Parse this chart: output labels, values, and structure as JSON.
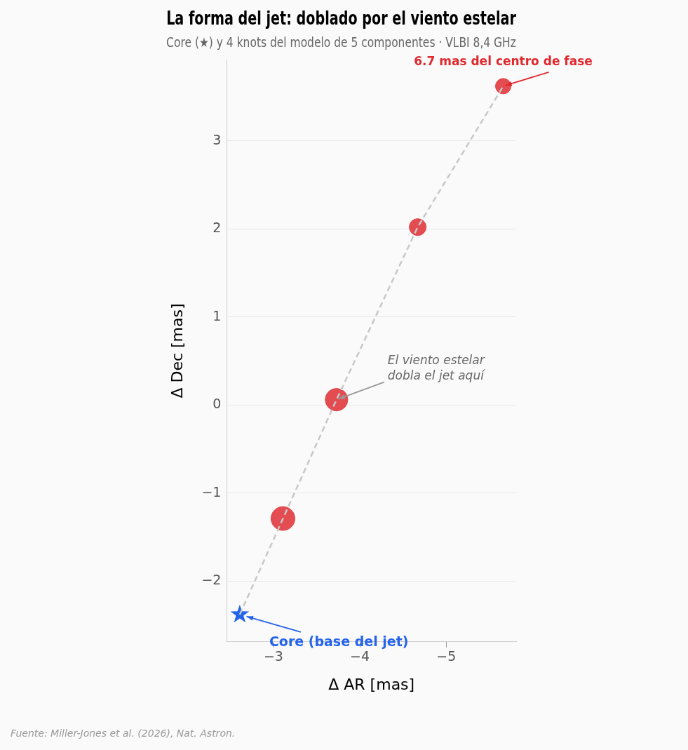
{
  "chart_data": {
    "type": "scatter",
    "title": "La forma del jet: doblado por el viento estelar",
    "subtitle": "Core (★) y 4 knots del modelo de 5 componentes · VLBI 8,4 GHz",
    "xlabel": "Δ AR [mas]",
    "ylabel": "Δ Dec [mas]",
    "xlim": [
      -2.46,
      -5.81
    ],
    "xticks": [
      {
        "value": -3,
        "label": "−3"
      },
      {
        "value": -4,
        "label": "−4"
      },
      {
        "value": -5,
        "label": "−5"
      }
    ],
    "ylim": [
      -2.69,
      3.92
    ],
    "yticks": [
      {
        "value": -2,
        "label": "−2"
      },
      {
        "value": -1,
        "label": "−1"
      },
      0,
      1,
      2,
      3
    ],
    "grid": "y",
    "legend": false,
    "series": [
      {
        "type": "line",
        "color": "#c8c8c8",
        "line_style": "dashed",
        "marker": "none",
        "x": [
          -2.61,
          -3.11,
          -3.73,
          -4.67,
          -5.66
        ],
        "values": [
          -2.38,
          -1.29,
          0.06,
          2.02,
          3.62
        ]
      },
      {
        "type": "bubble",
        "color": "#e03a3e",
        "marker": "circle",
        "x": [
          -3.11,
          -3.73,
          -4.67,
          -5.66
        ],
        "values": [
          -1.29,
          0.06,
          2.02,
          3.62
        ],
        "sizes": [
          1,
          0.89,
          0.5,
          0.42
        ]
      },
      {
        "type": "scatter",
        "color": "#2563eb",
        "marker": "star",
        "x": [
          -2.61
        ],
        "values": [
          -2.38
        ]
      }
    ],
    "annotations": [
      {
        "text": "6.7 mas del centro de fase",
        "x": -5.66,
        "y": 3.62
      },
      {
        "text": "El viento estelar\ndobla el jet aquí",
        "x": -3.73,
        "y": 0.06
      },
      {
        "text": "Core (base del jet)",
        "x": -2.61,
        "y": -2.38
      },
      "Fuente: Miller-Jones et al. (2026), Nat. Astron."
    ]
  }
}
